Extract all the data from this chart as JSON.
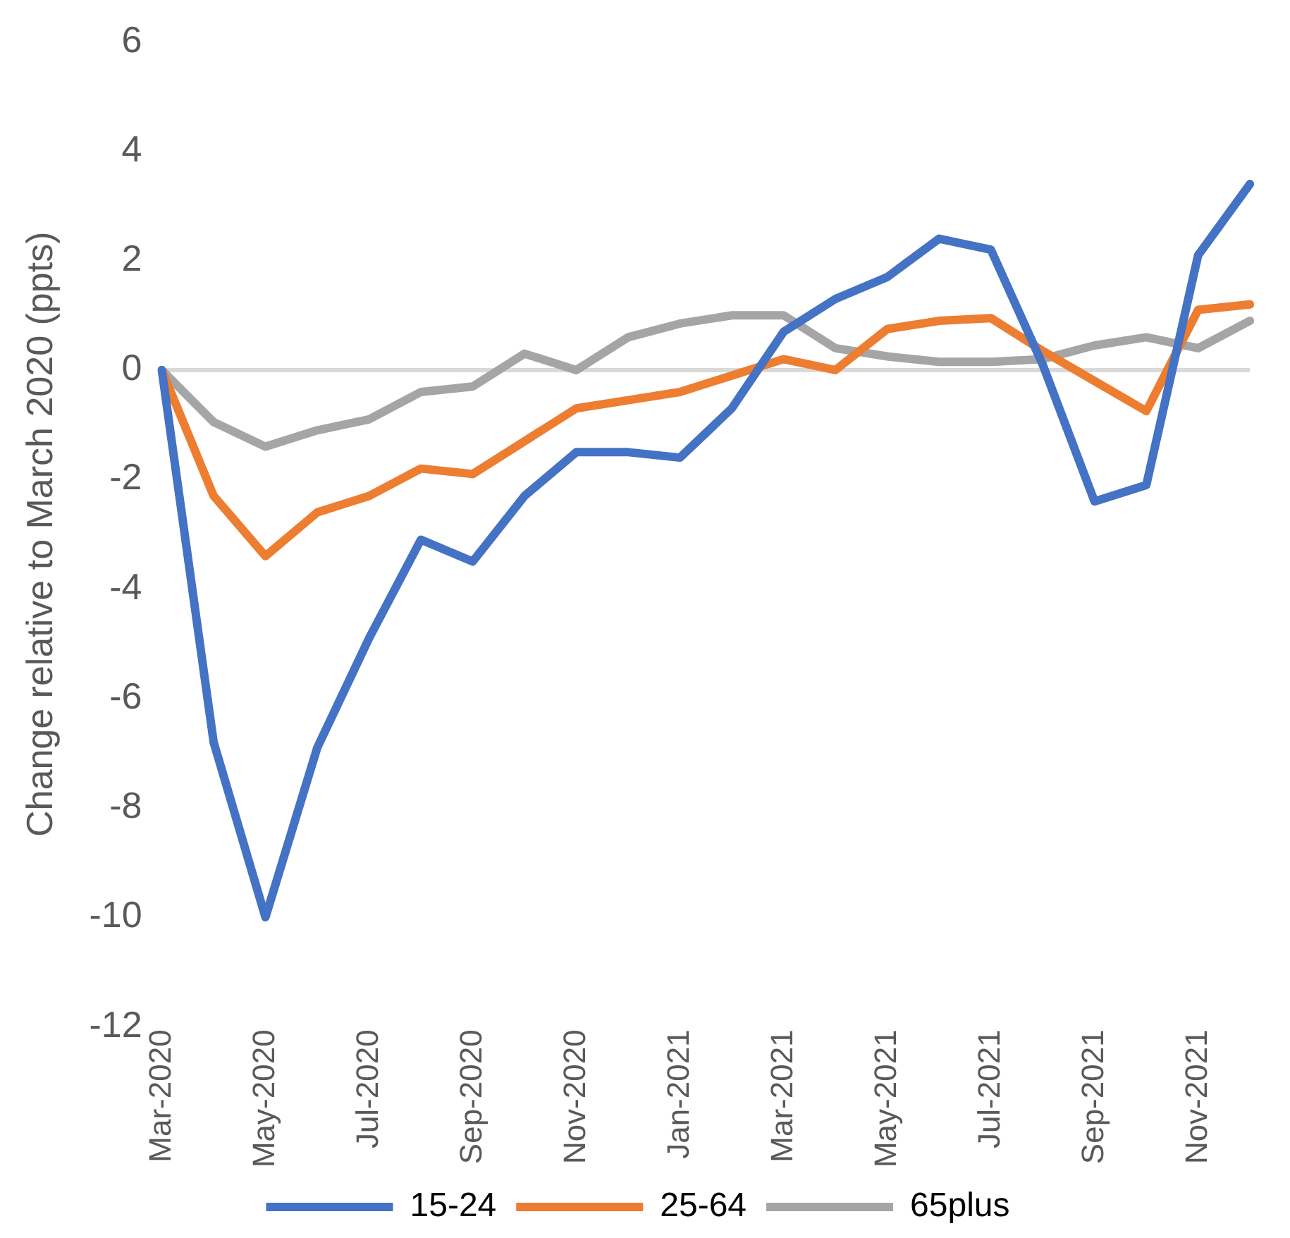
{
  "chart_data": {
    "type": "line",
    "ylabel": "Change relative to March 2020 (ppts)",
    "categories": [
      "Mar-2020",
      null,
      "May-2020",
      null,
      "Jul-2020",
      null,
      "Sep-2020",
      null,
      "Nov-2020",
      null,
      "Jan-2021",
      null,
      "Mar-2021",
      null,
      "May-2021",
      null,
      "Jul-2021",
      null,
      "Sep-2021",
      null,
      "Nov-2021",
      null
    ],
    "series": [
      {
        "name": "15-24",
        "color": "#4472c4",
        "values": [
          0,
          -6.8,
          -10,
          -6.9,
          -4.9,
          -3.1,
          -3.5,
          -2.3,
          -1.5,
          -1.5,
          -1.6,
          -0.7,
          0.7,
          1.3,
          1.7,
          2.4,
          2.2,
          0.1,
          -2.4,
          -2.1,
          2.1,
          3.4
        ]
      },
      {
        "name": "25-64",
        "color": "#ed7d31",
        "values": [
          0,
          -2.3,
          -3.4,
          -2.6,
          -2.3,
          -1.8,
          -1.9,
          -1.3,
          -0.7,
          -0.55,
          -0.4,
          -0.1,
          0.2,
          0,
          0.75,
          0.9,
          0.95,
          0.35,
          -0.2,
          -0.75,
          1.1,
          1.2
        ]
      },
      {
        "name": "65plus",
        "color": "#a5a5a5",
        "values": [
          0,
          -0.95,
          -1.4,
          -1.1,
          -0.9,
          -0.4,
          -0.3,
          0.3,
          0,
          0.6,
          0.85,
          1,
          1,
          0.4,
          0.25,
          0.15,
          0.15,
          0.2,
          0.45,
          0.6,
          0.4,
          0.9
        ]
      }
    ],
    "ref_lines": [
      {
        "axis": "y",
        "value": 0,
        "color": "#d9d9d9"
      }
    ],
    "ylim": [
      -12,
      6
    ],
    "yticks": [
      -12,
      -10,
      -8,
      -6,
      -4,
      -2,
      0,
      2,
      4,
      6
    ],
    "grid": false,
    "legend": "bottom",
    "marker": "none",
    "line_style": "solid"
  }
}
